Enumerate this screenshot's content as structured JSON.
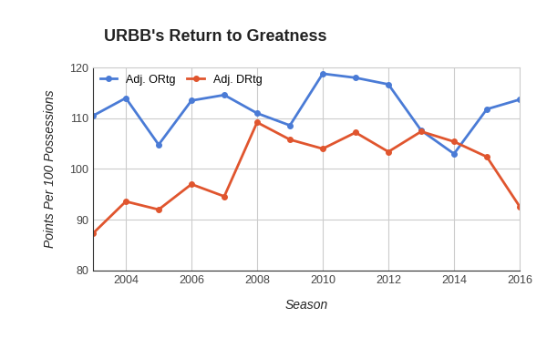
{
  "chart_data": {
    "type": "line",
    "title": "URBB's Return to Greatness",
    "x_label": "Season",
    "y_label": "Points Per 100 Possessions",
    "x": [
      2003,
      2004,
      2005,
      2006,
      2007,
      2008,
      2009,
      2010,
      2011,
      2012,
      2013,
      2014,
      2015,
      2016
    ],
    "series": [
      {
        "name": "Adj. ORtg",
        "color": "#4a7bd6",
        "marker": "o",
        "line_style": "solid",
        "values": [
          110.5,
          114.0,
          104.8,
          113.5,
          114.6,
          111.0,
          108.6,
          118.8,
          118.0,
          116.7,
          107.6,
          103.0,
          111.8,
          113.7
        ]
      },
      {
        "name": "Adj. DRtg",
        "color": "#e0552e",
        "marker": "o",
        "line_style": "solid",
        "values": [
          87.3,
          93.6,
          92.0,
          97.0,
          94.6,
          109.2,
          105.8,
          104.0,
          107.2,
          103.4,
          107.4,
          105.4,
          102.4,
          92.6
        ]
      }
    ],
    "xlim": [
      2003,
      2016
    ],
    "xticks": [
      2004,
      2006,
      2008,
      2010,
      2012,
      2014,
      2016
    ],
    "ylim": [
      80,
      120
    ],
    "yticks": [
      80,
      90,
      100,
      110,
      120
    ],
    "grid": true,
    "legend": "upper left"
  }
}
